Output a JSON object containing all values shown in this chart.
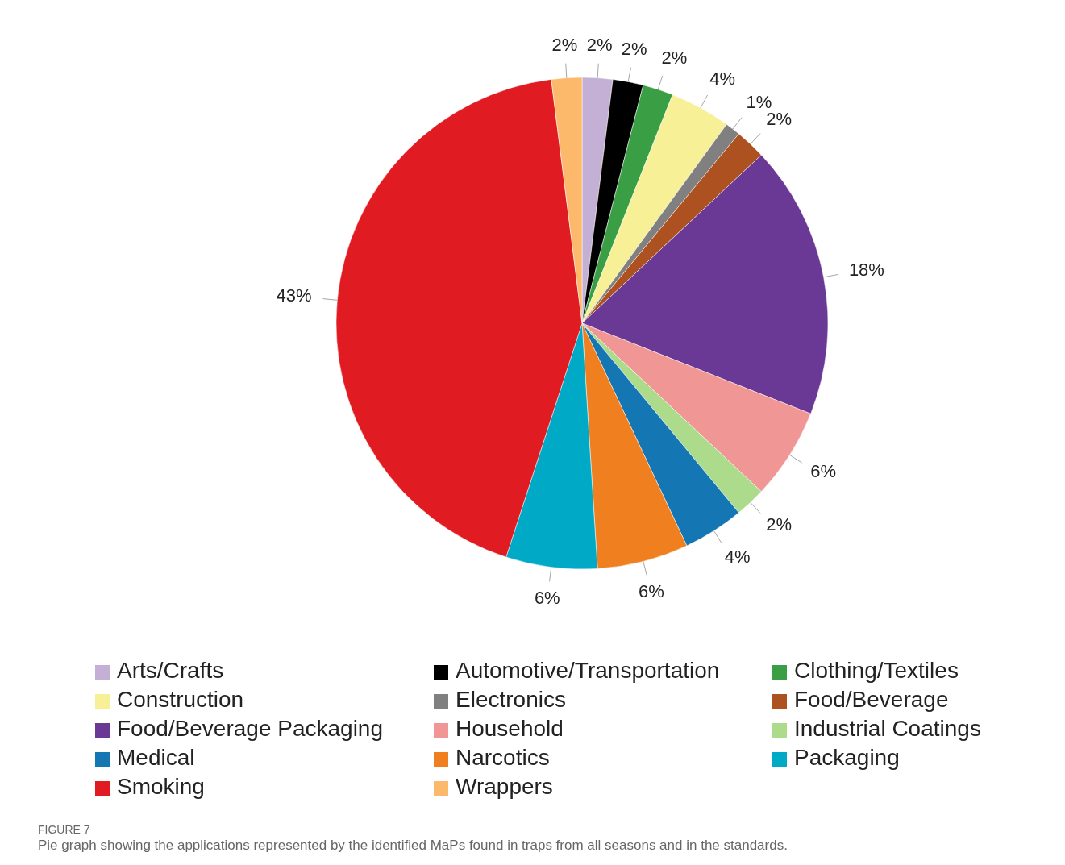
{
  "chart_data": {
    "type": "pie",
    "categories": [
      "Arts/Crafts",
      "Automotive/Transportation",
      "Clothing/Textiles",
      "Construction",
      "Electronics",
      "Food/Beverage",
      "Food/Beverage Packaging",
      "Household",
      "Industrial Coatings",
      "Medical",
      "Narcotics",
      "Packaging",
      "Smoking",
      "Wrappers"
    ],
    "values": [
      2,
      2,
      2,
      4,
      1,
      2,
      18,
      6,
      2,
      4,
      6,
      6,
      43,
      2
    ],
    "value_labels": [
      "2%",
      "2%",
      "2%",
      "4%",
      "1%",
      "2%",
      "18%",
      "6%",
      "2%",
      "4%",
      "6%",
      "6%",
      "43%",
      "2%"
    ],
    "colors": [
      "#c5b0d5",
      "#000000",
      "#3a9e44",
      "#f7f097",
      "#808080",
      "#ad5120",
      "#6a3895",
      "#f09795",
      "#addb8c",
      "#1476b3",
      "#f07f20",
      "#00aac6",
      "#e01c22",
      "#fdb96b"
    ],
    "legend": "bottom",
    "annotations": [
      "FIGURE 7",
      "Pie graph showing the applications represented by the identified MaPs found in traps from all seasons and in the standards."
    ]
  }
}
